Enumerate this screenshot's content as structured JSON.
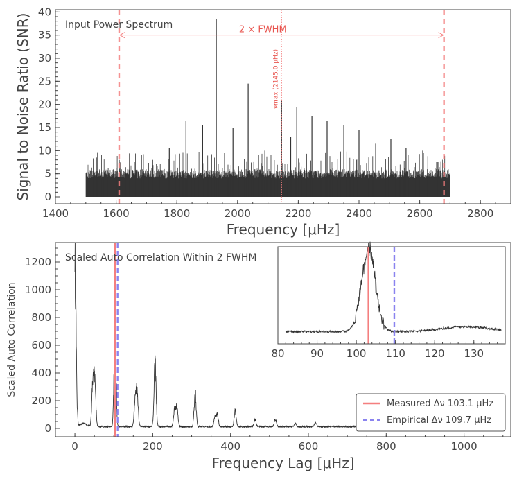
{
  "chart_data": [
    {
      "type": "line",
      "panel_label": "Input Power Spectrum",
      "xlabel": "Frequency [μHz]",
      "ylabel": "Signal to Noise Ratio (SNR)",
      "xlim": [
        1400,
        2900
      ],
      "ylim": [
        -1.5,
        40.5
      ],
      "xticks": [
        1400,
        1600,
        1800,
        2000,
        2200,
        2400,
        2600,
        2800
      ],
      "yticks": [
        0,
        5,
        10,
        15,
        20,
        25,
        30,
        35,
        40
      ],
      "data_range": [
        1500,
        2700
      ],
      "noise_level": 4,
      "peaks": [
        [
          1535,
          8.5
        ],
        [
          1610,
          8
        ],
        [
          1720,
          8
        ],
        [
          1775,
          10.5
        ],
        [
          1830,
          16.5
        ],
        [
          1885,
          15.5
        ],
        [
          1930,
          38.5
        ],
        [
          1985,
          15
        ],
        [
          2035,
          24.5
        ],
        [
          2090,
          10
        ],
        [
          2145,
          21
        ],
        [
          2195,
          19.5
        ],
        [
          2245,
          17.5
        ],
        [
          2295,
          16.5
        ],
        [
          2350,
          15.5
        ],
        [
          2400,
          14.5
        ],
        [
          2455,
          11.5
        ],
        [
          2505,
          12.5
        ],
        [
          2555,
          10.5
        ],
        [
          2610,
          10
        ],
        [
          2660,
          7.5
        ],
        [
          1660,
          7.5
        ],
        [
          2175,
          13
        ]
      ],
      "fwhm_lines": [
        1610,
        2680
      ],
      "numax": 2145.0,
      "numax_label": "νmax (2145.0 μHz)",
      "fwhm_label": "2 × FWHM"
    },
    {
      "type": "line",
      "panel_label": "Scaled Auto Correlation Within 2 FWHM",
      "xlabel": "Frequency Lag [μHz]",
      "ylabel": "Scaled Auto Correlation",
      "xlim": [
        -50,
        1120
      ],
      "ylim": [
        -60,
        1340
      ],
      "xticks": [
        0,
        200,
        400,
        600,
        800,
        1000
      ],
      "yticks": [
        0,
        200,
        400,
        600,
        800,
        1000,
        1200
      ],
      "peaks": [
        [
          0,
          1260
        ],
        [
          46,
          330
        ],
        [
          51,
          360
        ],
        [
          103,
          700
        ],
        [
          155,
          220
        ],
        [
          160,
          250
        ],
        [
          206,
          490
        ],
        [
          256,
          130
        ],
        [
          262,
          150
        ],
        [
          309,
          260
        ],
        [
          360,
          80
        ],
        [
          366,
          90
        ],
        [
          412,
          120
        ],
        [
          463,
          50
        ],
        [
          515,
          60
        ],
        [
          566,
          25
        ],
        [
          618,
          30
        ]
      ],
      "measured_dnu": 103.1,
      "empirical_dnu": 109.7,
      "legend": [
        {
          "label": "Measured Δν 103.1 μHz",
          "color": "#f47f7f",
          "style": "solid"
        },
        {
          "label": "Empirical Δν 109.7 μHz",
          "color": "#8a83ef",
          "style": "dashed"
        }
      ],
      "legend_position": "lower-right"
    },
    {
      "type": "line",
      "panel_label": "",
      "xlim": [
        80,
        138
      ],
      "xticks": [
        80,
        90,
        100,
        110,
        120,
        130
      ],
      "peak_center": 103.1,
      "peak_height": 1.0,
      "peak_width": 1.8,
      "baseline": 0.08,
      "bump_center": 128,
      "bump_height": 0.06,
      "measured_dnu": 103.1,
      "empirical_dnu": 109.7
    }
  ],
  "colors": {
    "trace": "#333333",
    "measured": "#f47f7f",
    "empirical": "#8a83ef",
    "fwhm": "#f47f7f",
    "axis": "#444444"
  }
}
